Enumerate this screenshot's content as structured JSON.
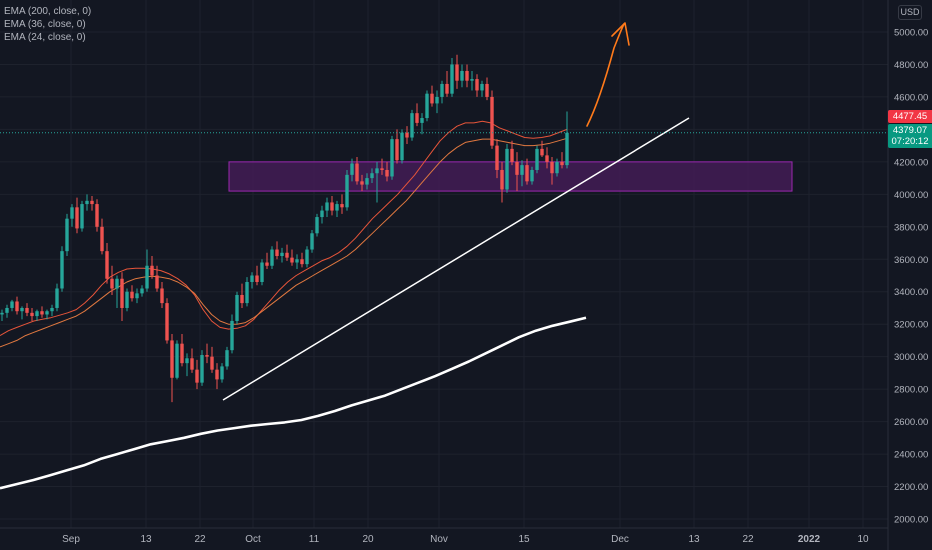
{
  "legend": {
    "ema200": "EMA (200, close, 0)",
    "ema36": "EMA (36, close, 0)",
    "ema24": "EMA (24, close, 0)"
  },
  "currency": "USD",
  "price_high_tag": "4477.45",
  "price_last_tag": "4379.07",
  "countdown": "07:20:12",
  "colors": {
    "background": "#131722",
    "up": "#26a69a",
    "down": "#ef5350",
    "ema24": "#e8553a",
    "ema36": "#e07840",
    "ema200": "#ffffff",
    "zone_fill": "#4a1e5c",
    "zone_stroke": "#9c27b0",
    "trendline": "#ffffff",
    "projection": "#ff7a1a"
  },
  "chart_data": {
    "type": "candlestick",
    "y_axis": {
      "min": 2000,
      "max": 5000,
      "ticks": [
        2000,
        2200,
        2400,
        2600,
        2800,
        3000,
        3200,
        3400,
        3600,
        3800,
        4000,
        4200,
        4400,
        4600,
        4800,
        5000
      ]
    },
    "x_axis": {
      "tick_labels": [
        "Sep",
        "13",
        "22",
        "Oct",
        "11",
        "20",
        "Nov",
        "15",
        "Dec",
        "13",
        "22",
        "2022",
        "10"
      ]
    },
    "last_price": 4379.07,
    "horizontal_zone": [
      4020,
      4200
    ],
    "trendline": [
      [
        2735,
        0
      ],
      [
        4460,
        1
      ]
    ],
    "candles": [
      [
        3260,
        3290,
        3220,
        3270
      ],
      [
        3270,
        3320,
        3240,
        3300
      ],
      [
        3300,
        3350,
        3280,
        3340
      ],
      [
        3340,
        3370,
        3260,
        3280
      ],
      [
        3280,
        3310,
        3230,
        3300
      ],
      [
        3300,
        3330,
        3250,
        3270
      ],
      [
        3270,
        3300,
        3220,
        3250
      ],
      [
        3250,
        3290,
        3220,
        3280
      ],
      [
        3280,
        3310,
        3240,
        3260
      ],
      [
        3260,
        3290,
        3230,
        3280
      ],
      [
        3280,
        3320,
        3250,
        3300
      ],
      [
        3300,
        3450,
        3280,
        3420
      ],
      [
        3420,
        3680,
        3400,
        3650
      ],
      [
        3650,
        3880,
        3620,
        3850
      ],
      [
        3850,
        3940,
        3800,
        3920
      ],
      [
        3920,
        3980,
        3760,
        3790
      ],
      [
        3790,
        3960,
        3770,
        3940
      ],
      [
        3940,
        4000,
        3900,
        3960
      ],
      [
        3960,
        3990,
        3900,
        3940
      ],
      [
        3940,
        3970,
        3770,
        3800
      ],
      [
        3800,
        3850,
        3630,
        3650
      ],
      [
        3650,
        3700,
        3450,
        3480
      ],
      [
        3480,
        3560,
        3380,
        3420
      ],
      [
        3420,
        3500,
        3300,
        3480
      ],
      [
        3480,
        3520,
        3220,
        3300
      ],
      [
        3300,
        3420,
        3280,
        3400
      ],
      [
        3400,
        3440,
        3340,
        3360
      ],
      [
        3360,
        3420,
        3330,
        3390
      ],
      [
        3390,
        3440,
        3370,
        3420
      ],
      [
        3420,
        3660,
        3400,
        3560
      ],
      [
        3560,
        3620,
        3480,
        3500
      ],
      [
        3500,
        3560,
        3400,
        3420
      ],
      [
        3420,
        3460,
        3300,
        3330
      ],
      [
        3330,
        3360,
        3080,
        3100
      ],
      [
        3100,
        3140,
        2720,
        2870
      ],
      [
        2870,
        3100,
        2860,
        3080
      ],
      [
        3080,
        3140,
        2940,
        2960
      ],
      [
        2960,
        3020,
        2880,
        2990
      ],
      [
        2990,
        3050,
        2900,
        2920
      ],
      [
        2920,
        2980,
        2800,
        2840
      ],
      [
        2840,
        3040,
        2820,
        3010
      ],
      [
        3010,
        3080,
        2960,
        3000
      ],
      [
        3000,
        3060,
        2900,
        2920
      ],
      [
        2920,
        2960,
        2800,
        2860
      ],
      [
        2860,
        2960,
        2840,
        2940
      ],
      [
        2940,
        3060,
        2920,
        3040
      ],
      [
        3040,
        3260,
        3020,
        3220
      ],
      [
        3220,
        3400,
        3200,
        3380
      ],
      [
        3380,
        3450,
        3300,
        3330
      ],
      [
        3330,
        3490,
        3310,
        3460
      ],
      [
        3460,
        3520,
        3420,
        3500
      ],
      [
        3500,
        3560,
        3440,
        3460
      ],
      [
        3460,
        3600,
        3440,
        3580
      ],
      [
        3580,
        3640,
        3540,
        3560
      ],
      [
        3560,
        3680,
        3540,
        3660
      ],
      [
        3660,
        3710,
        3600,
        3620
      ],
      [
        3620,
        3670,
        3580,
        3640
      ],
      [
        3640,
        3690,
        3590,
        3610
      ],
      [
        3610,
        3660,
        3560,
        3580
      ],
      [
        3580,
        3630,
        3540,
        3600
      ],
      [
        3600,
        3640,
        3550,
        3570
      ],
      [
        3570,
        3680,
        3550,
        3660
      ],
      [
        3660,
        3780,
        3640,
        3760
      ],
      [
        3760,
        3880,
        3740,
        3860
      ],
      [
        3860,
        3930,
        3820,
        3900
      ],
      [
        3900,
        3980,
        3860,
        3950
      ],
      [
        3950,
        3990,
        3870,
        3900
      ],
      [
        3900,
        3960,
        3860,
        3940
      ],
      [
        3940,
        4000,
        3880,
        3920
      ],
      [
        3920,
        4150,
        3900,
        4120
      ],
      [
        4120,
        4220,
        4080,
        4190
      ],
      [
        4190,
        4230,
        4060,
        4080
      ],
      [
        4080,
        4120,
        4020,
        4060
      ],
      [
        4060,
        4130,
        4030,
        4100
      ],
      [
        4100,
        4160,
        4070,
        4130
      ],
      [
        4130,
        4200,
        3950,
        4160
      ],
      [
        4160,
        4220,
        4120,
        4150
      ],
      [
        4150,
        4200,
        4080,
        4110
      ],
      [
        4110,
        4360,
        4090,
        4340
      ],
      [
        4340,
        4400,
        4190,
        4210
      ],
      [
        4210,
        4400,
        4190,
        4380
      ],
      [
        4380,
        4420,
        4310,
        4350
      ],
      [
        4350,
        4520,
        4330,
        4500
      ],
      [
        4500,
        4560,
        4420,
        4440
      ],
      [
        4440,
        4500,
        4370,
        4470
      ],
      [
        4470,
        4640,
        4450,
        4620
      ],
      [
        4620,
        4670,
        4540,
        4560
      ],
      [
        4560,
        4640,
        4500,
        4600
      ],
      [
        4600,
        4700,
        4560,
        4680
      ],
      [
        4680,
        4760,
        4600,
        4620
      ],
      [
        4620,
        4840,
        4600,
        4800
      ],
      [
        4800,
        4860,
        4650,
        4700
      ],
      [
        4700,
        4800,
        4660,
        4760
      ],
      [
        4760,
        4800,
        4660,
        4700
      ],
      [
        4700,
        4760,
        4640,
        4710
      ],
      [
        4710,
        4740,
        4600,
        4640
      ],
      [
        4640,
        4700,
        4600,
        4680
      ],
      [
        4680,
        4720,
        4580,
        4600
      ],
      [
        4600,
        4640,
        4280,
        4300
      ],
      [
        4300,
        4340,
        4100,
        4150
      ],
      [
        4150,
        4200,
        3950,
        4030
      ],
      [
        4030,
        4310,
        4010,
        4280
      ],
      [
        4280,
        4330,
        4180,
        4200
      ],
      [
        4200,
        4260,
        4020,
        4120
      ],
      [
        4120,
        4210,
        4050,
        4180
      ],
      [
        4180,
        4220,
        4060,
        4080
      ],
      [
        4080,
        4170,
        4060,
        4150
      ],
      [
        4150,
        4300,
        4130,
        4280
      ],
      [
        4280,
        4330,
        4230,
        4240
      ],
      [
        4240,
        4290,
        4160,
        4200
      ],
      [
        4200,
        4230,
        4060,
        4130
      ],
      [
        4130,
        4220,
        4110,
        4200
      ],
      [
        4200,
        4260,
        4160,
        4180
      ],
      [
        4180,
        4510,
        4160,
        4379
      ]
    ],
    "series": [
      {
        "name": "EMA (24, close, 0)",
        "values": [
          3130,
          3160,
          3180,
          3200,
          3220,
          3230,
          3240,
          3255,
          3270,
          3290,
          3330,
          3380,
          3440,
          3490,
          3520,
          3540,
          3545,
          3545,
          3540,
          3530,
          3510,
          3480,
          3440,
          3380,
          3290,
          3220,
          3180,
          3170,
          3175,
          3190,
          3230,
          3290,
          3350,
          3410,
          3460,
          3500,
          3530,
          3560,
          3590,
          3610,
          3640,
          3680,
          3730,
          3790,
          3850,
          3900,
          3950,
          4000,
          4060,
          4120,
          4190,
          4260,
          4330,
          4380,
          4420,
          4440,
          4440,
          4450,
          4440,
          4410,
          4390,
          4370,
          4350,
          4345,
          4350,
          4360,
          4380,
          4400
        ]
      },
      {
        "name": "EMA (36, close, 0)",
        "values": [
          3060,
          3080,
          3100,
          3130,
          3150,
          3170,
          3190,
          3210,
          3230,
          3250,
          3280,
          3320,
          3360,
          3400,
          3430,
          3460,
          3480,
          3490,
          3495,
          3490,
          3480,
          3460,
          3430,
          3390,
          3320,
          3260,
          3220,
          3200,
          3200,
          3210,
          3240,
          3280,
          3320,
          3360,
          3400,
          3440,
          3470,
          3500,
          3530,
          3560,
          3590,
          3620,
          3660,
          3710,
          3760,
          3810,
          3860,
          3910,
          3960,
          4020,
          4080,
          4140,
          4200,
          4250,
          4290,
          4320,
          4330,
          4340,
          4340,
          4330,
          4320,
          4310,
          4300,
          4300,
          4305,
          4315,
          4330,
          4345
        ]
      },
      {
        "name": "EMA (200, close, 0)",
        "values": [
          2190,
          2215,
          2240,
          2270,
          2300,
          2330,
          2370,
          2400,
          2430,
          2460,
          2480,
          2500,
          2525,
          2545,
          2560,
          2575,
          2585,
          2595,
          2610,
          2635,
          2665,
          2700,
          2730,
          2760,
          2800,
          2840,
          2880,
          2925,
          2970,
          3020,
          3070,
          3120,
          3160,
          3190,
          3215,
          3240
        ]
      }
    ]
  }
}
